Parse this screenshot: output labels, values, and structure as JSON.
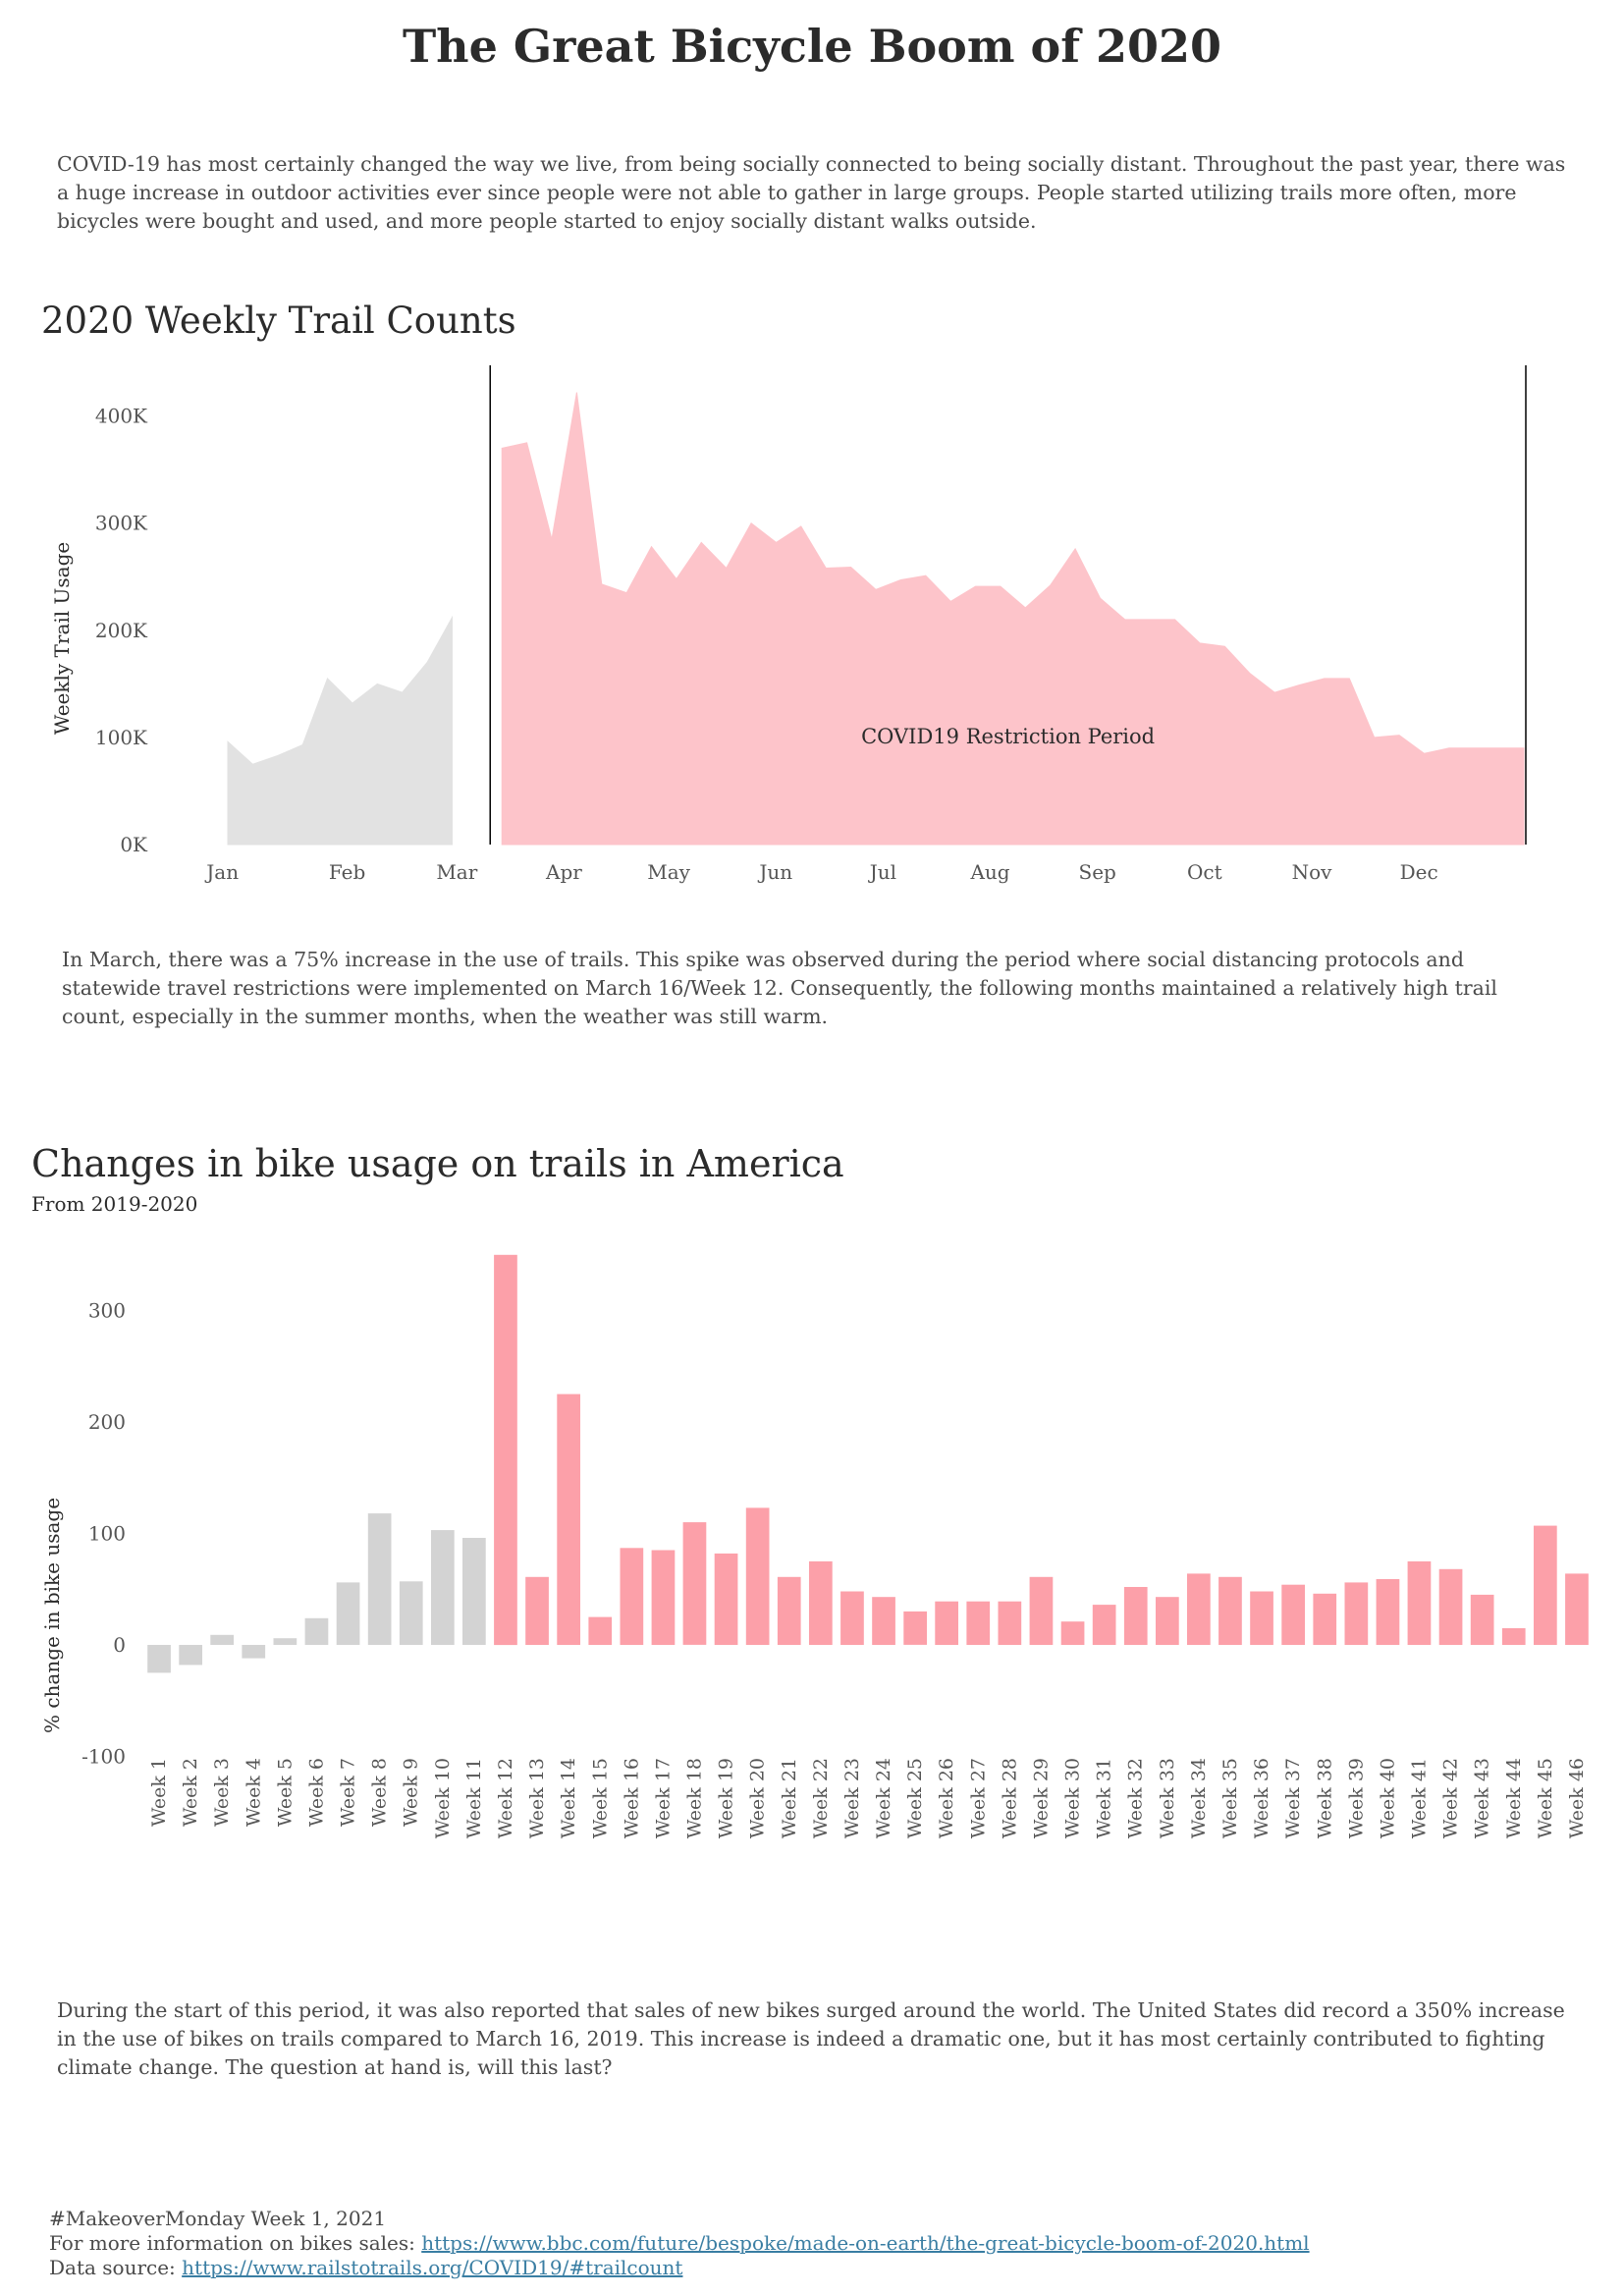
{
  "title": "The Great Bicycle Boom of 2020",
  "intro": "COVID-19 has most certainly changed the way we live, from being socially connected to being socially distant. Throughout the past year, there was a huge increase in outdoor activities ever since people were not able to gather in large groups. People started utilizing trails more often, more bicycles were bought and used, and more people started to enjoy socially distant walks outside.",
  "middle_text": "In March, there was a 75% increase in the use of trails. This spike was observed during the period where social distancing protocols and statewide travel restrictions were implemented on March 16/Week 12. Consequently, the following months maintained a relatively high trail count, especially in the summer months, when the weather was still warm.",
  "closing_text": "During the start of this period, it was also reported that sales of new bikes surged around the world. The United States did record a 350% increase in the use of bikes on trails compared to March 16, 2019. This increase is indeed a dramatic one, but it has most certainly contributed to fighting climate change. The question at hand is, will this last?",
  "footer": {
    "line1": "#MakeoverMonday Week 1, 2021",
    "line2_label": "For more information on bikes sales: ",
    "line2_link": "https://www.bbc.com/future/bespoke/made-on-earth/the-great-bicycle-boom-of-2020.html",
    "line3_label": "Data source: ",
    "line3_link": "https://www.railstotrails.org/COVID19/#trailcount"
  },
  "colors": {
    "pre_covid": "#d3d3d3",
    "covid_area": "#fdc4ca",
    "covid_bar": "#fca0a9",
    "divider": "#000000"
  },
  "chart_data": [
    {
      "type": "area",
      "title": "2020 Weekly Trail Counts",
      "ylabel": "Weekly Trail Usage",
      "xlabel": "",
      "ylim": [
        0,
        440000
      ],
      "yticks": [
        0,
        100000,
        200000,
        300000,
        400000
      ],
      "ytick_labels": [
        "0K",
        "100K",
        "200K",
        "300K",
        "400K"
      ],
      "x_months": [
        "Jan",
        "Feb",
        "Mar",
        "Apr",
        "May",
        "Jun",
        "Jul",
        "Aug",
        "Sep",
        "Oct",
        "Nov",
        "Dec"
      ],
      "annotation": "COVID19 Restriction Period",
      "series": [
        {
          "period": "pre-restriction",
          "x_week": [
            1,
            2,
            3,
            4,
            5,
            6,
            7,
            8,
            9,
            10
          ],
          "values": [
            96000,
            75000,
            83000,
            93000,
            155000,
            132000,
            150000,
            142000,
            170000,
            212000
          ]
        },
        {
          "period": "restriction",
          "x_week": [
            12,
            13,
            14,
            15,
            16,
            17,
            18,
            19,
            20,
            21,
            22,
            23,
            24,
            25,
            26,
            27,
            28,
            29,
            30,
            31,
            32,
            33,
            34,
            35,
            36,
            37,
            38,
            39,
            40,
            41,
            42,
            43,
            44,
            45,
            46,
            47,
            48,
            49,
            50,
            51,
            52,
            53
          ],
          "values": [
            370000,
            375000,
            285000,
            422000,
            243000,
            235000,
            278000,
            248000,
            282000,
            258000,
            300000,
            282000,
            297000,
            258000,
            259000,
            238000,
            247000,
            251000,
            227000,
            241000,
            241000,
            221000,
            242000,
            276000,
            230000,
            210000,
            210000,
            210000,
            188000,
            185000,
            160000,
            142000,
            149000,
            155000,
            155000,
            100000,
            102000,
            85000,
            90000,
            90000,
            90000,
            90000
          ]
        }
      ]
    },
    {
      "type": "bar",
      "title": "Changes in bike usage on trails in America",
      "subtitle": "From 2019-2020",
      "ylabel": "% change in bike usage",
      "xlabel": "",
      "ylim": [
        -150,
        360
      ],
      "yticks": [
        -100,
        0,
        100,
        200,
        300
      ],
      "categories": [
        "Week 1",
        "Week 2",
        "Week 3",
        "Week 4",
        "Week 5",
        "Week 6",
        "Week 7",
        "Week 8",
        "Week 9",
        "Week 10",
        "Week 11",
        "Week 12",
        "Week 13",
        "Week 14",
        "Week 15",
        "Week 16",
        "Week 17",
        "Week 18",
        "Week 19",
        "Week 20",
        "Week 21",
        "Week 22",
        "Week 23",
        "Week 24",
        "Week 25",
        "Week 26",
        "Week 27",
        "Week 28",
        "Week 29",
        "Week 30",
        "Week 31",
        "Week 32",
        "Week 33",
        "Week 34",
        "Week 35",
        "Week 36",
        "Week 37",
        "Week 38",
        "Week 39",
        "Week 40",
        "Week 41",
        "Week 42",
        "Week 43",
        "Week 44",
        "Week 45",
        "Week 46"
      ],
      "values": [
        -25,
        -18,
        9,
        -12,
        6,
        24,
        56,
        118,
        57,
        103,
        96,
        350,
        61,
        225,
        25,
        87,
        85,
        110,
        82,
        123,
        61,
        75,
        48,
        43,
        30,
        39,
        39,
        39,
        61,
        21,
        36,
        52,
        43,
        64,
        61,
        48,
        54,
        46,
        56,
        59,
        75,
        68,
        45,
        15,
        107,
        64
      ],
      "covid_start_index": 11
    }
  ]
}
